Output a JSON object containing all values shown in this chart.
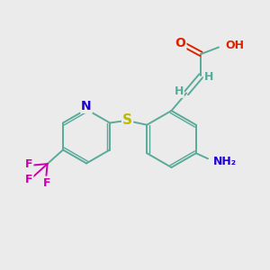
{
  "background_color": "#ebebeb",
  "bond_color": "#5aaa99",
  "atom_colors": {
    "O": "#dd2200",
    "N": "#2200cc",
    "S": "#bbbb00",
    "F": "#cc00aa",
    "H": "#5aaa99",
    "C": "#5aaa99"
  },
  "figsize": [
    3.0,
    3.0
  ],
  "dpi": 100
}
